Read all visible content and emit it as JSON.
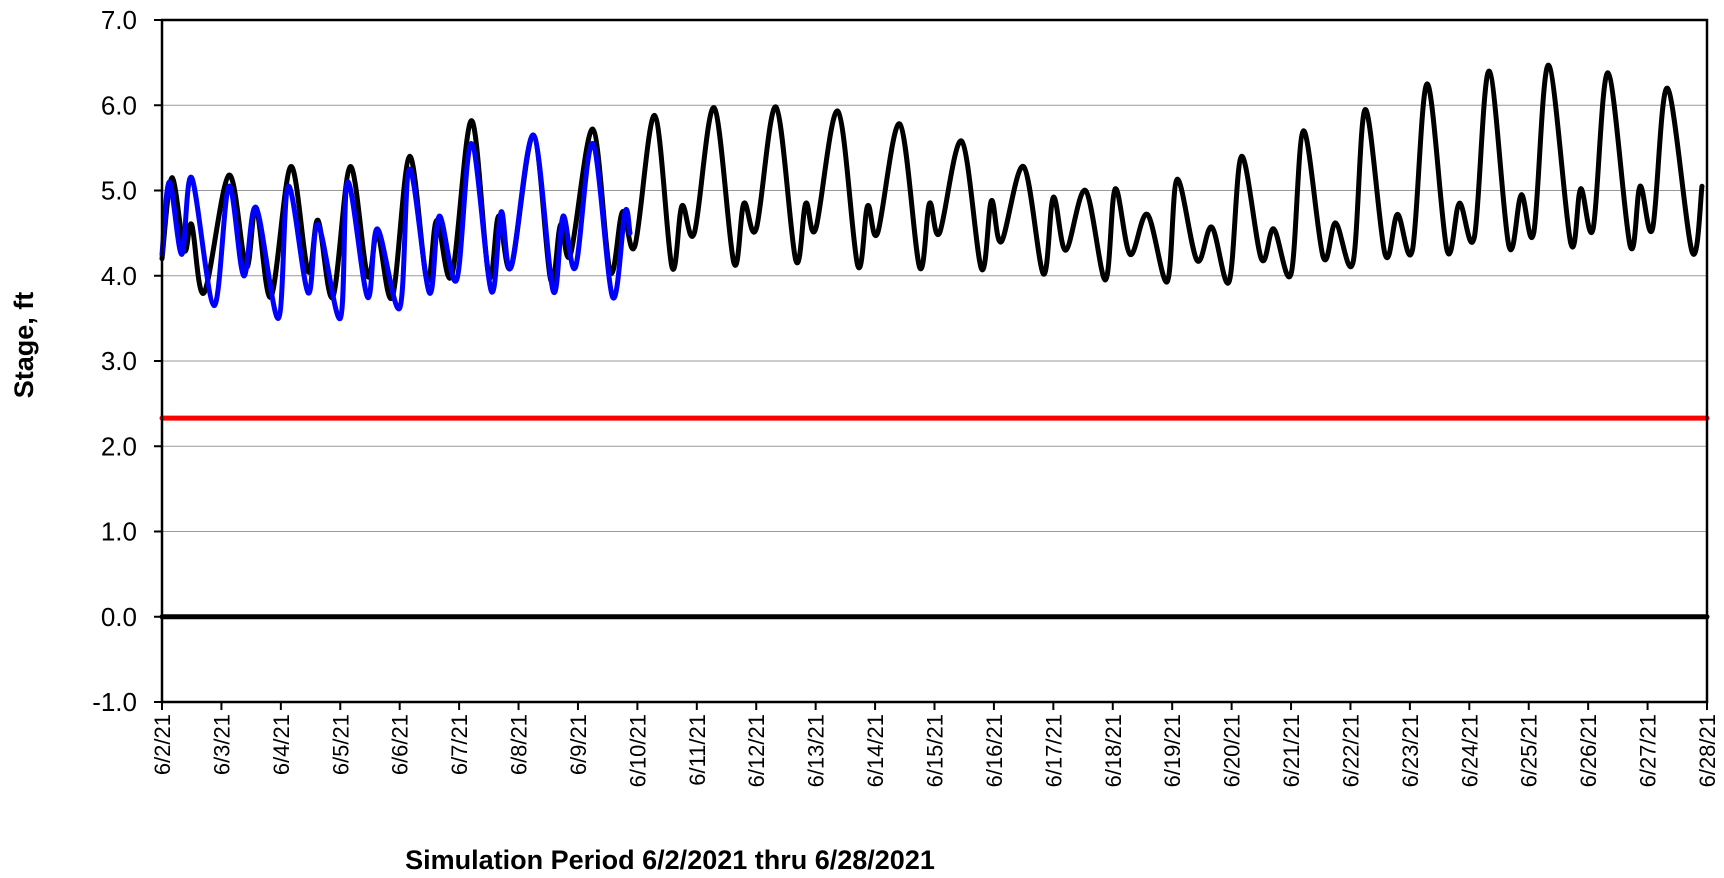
{
  "chart_data": {
    "type": "line",
    "title": "",
    "xlabel": "Simulation Period 6/2/2021 thru 6/28/2021",
    "ylabel": "Stage, ft",
    "ylim": [
      -1.0,
      7.0
    ],
    "y_ticks": [
      "-1.0",
      "0.0",
      "1.0",
      "2.0",
      "3.0",
      "4.0",
      "5.0",
      "6.0",
      "7.0"
    ],
    "x_start": "2021-06-02",
    "x_end": "2021-06-28",
    "x_tick_labels": [
      "6/2/21",
      "6/3/21",
      "6/4/21",
      "6/5/21",
      "6/6/21",
      "6/7/21",
      "6/8/21",
      "6/9/21",
      "6/10/21",
      "6/11/21",
      "6/12/21",
      "6/13/21",
      "6/14/21",
      "6/15/21",
      "6/16/21",
      "6/17/21",
      "6/18/21",
      "6/19/21",
      "6/20/21",
      "6/21/21",
      "6/22/21",
      "6/23/21",
      "6/24/21",
      "6/25/21",
      "6/26/21",
      "6/27/21",
      "6/28/21"
    ],
    "grid": "horizontal",
    "legend": "none",
    "series": [
      {
        "color": "#000000",
        "points": [
          [
            "2021-06-02 00:00",
            4.2
          ],
          [
            "2021-06-02 04:00",
            5.15
          ],
          [
            "2021-06-02 09:00",
            4.3
          ],
          [
            "2021-06-02 12:00",
            4.6
          ],
          [
            "2021-06-02 17:00",
            3.8
          ],
          [
            "2021-06-03 03:00",
            5.18
          ],
          [
            "2021-06-03 10:00",
            4.1
          ],
          [
            "2021-06-03 14:00",
            4.8
          ],
          [
            "2021-06-03 20:00",
            3.75
          ],
          [
            "2021-06-04 04:00",
            5.28
          ],
          [
            "2021-06-04 11:00",
            4.05
          ],
          [
            "2021-06-04 15:00",
            4.65
          ],
          [
            "2021-06-04 21:00",
            3.75
          ],
          [
            "2021-06-05 04:00",
            5.28
          ],
          [
            "2021-06-05 11:00",
            4.0
          ],
          [
            "2021-06-05 15:00",
            4.5
          ],
          [
            "2021-06-05 21:00",
            3.75
          ],
          [
            "2021-06-06 04:00",
            5.4
          ],
          [
            "2021-06-06 11:00",
            3.95
          ],
          [
            "2021-06-06 15:00",
            4.65
          ],
          [
            "2021-06-06 21:00",
            4.0
          ],
          [
            "2021-06-07 05:00",
            5.82
          ],
          [
            "2021-06-07 12:00",
            4.0
          ],
          [
            "2021-06-07 16:00",
            4.7
          ],
          [
            "2021-06-07 21:00",
            4.1
          ],
          [
            "2021-06-08 06:00",
            5.65
          ],
          [
            "2021-06-08 13:00",
            3.95
          ],
          [
            "2021-06-08 17:00",
            4.6
          ],
          [
            "2021-06-08 21:00",
            4.25
          ],
          [
            "2021-06-09 06:00",
            5.72
          ],
          [
            "2021-06-09 13:00",
            4.05
          ],
          [
            "2021-06-09 18:00",
            4.75
          ],
          [
            "2021-06-09 23:00",
            4.35
          ],
          [
            "2021-06-10 07:00",
            5.88
          ],
          [
            "2021-06-10 14:00",
            4.1
          ],
          [
            "2021-06-10 18:00",
            4.82
          ],
          [
            "2021-06-10 23:00",
            4.5
          ],
          [
            "2021-06-11 07:00",
            5.97
          ],
          [
            "2021-06-11 15:00",
            4.15
          ],
          [
            "2021-06-11 19:00",
            4.85
          ],
          [
            "2021-06-12 00:00",
            4.55
          ],
          [
            "2021-06-12 08:00",
            5.98
          ],
          [
            "2021-06-12 16:00",
            4.18
          ],
          [
            "2021-06-12 20:00",
            4.85
          ],
          [
            "2021-06-13 00:00",
            4.55
          ],
          [
            "2021-06-13 09:00",
            5.93
          ],
          [
            "2021-06-13 17:00",
            4.12
          ],
          [
            "2021-06-13 21:00",
            4.82
          ],
          [
            "2021-06-14 01:00",
            4.5
          ],
          [
            "2021-06-14 10:00",
            5.78
          ],
          [
            "2021-06-14 18:00",
            4.1
          ],
          [
            "2021-06-14 22:00",
            4.85
          ],
          [
            "2021-06-15 02:00",
            4.5
          ],
          [
            "2021-06-15 11:00",
            5.58
          ],
          [
            "2021-06-15 19:00",
            4.08
          ],
          [
            "2021-06-15 23:00",
            4.88
          ],
          [
            "2021-06-16 03:00",
            4.4
          ],
          [
            "2021-06-16 12:00",
            5.28
          ],
          [
            "2021-06-16 20:00",
            4.02
          ],
          [
            "2021-06-17 00:00",
            4.92
          ],
          [
            "2021-06-17 05:00",
            4.3
          ],
          [
            "2021-06-17 13:00",
            5.0
          ],
          [
            "2021-06-17 21:00",
            3.95
          ],
          [
            "2021-06-18 01:00",
            5.02
          ],
          [
            "2021-06-18 07:00",
            4.25
          ],
          [
            "2021-06-18 14:00",
            4.72
          ],
          [
            "2021-06-18 22:00",
            3.93
          ],
          [
            "2021-06-19 02:00",
            5.13
          ],
          [
            "2021-06-19 10:00",
            4.18
          ],
          [
            "2021-06-19 16:00",
            4.57
          ],
          [
            "2021-06-19 23:00",
            3.93
          ],
          [
            "2021-06-20 04:00",
            5.4
          ],
          [
            "2021-06-20 12:00",
            4.2
          ],
          [
            "2021-06-20 17:00",
            4.55
          ],
          [
            "2021-06-21 00:00",
            4.02
          ],
          [
            "2021-06-21 05:00",
            5.7
          ],
          [
            "2021-06-21 13:00",
            4.22
          ],
          [
            "2021-06-21 18:00",
            4.62
          ],
          [
            "2021-06-22 01:00",
            4.15
          ],
          [
            "2021-06-22 06:00",
            5.95
          ],
          [
            "2021-06-22 14:00",
            4.25
          ],
          [
            "2021-06-22 19:00",
            4.72
          ],
          [
            "2021-06-23 01:00",
            4.3
          ],
          [
            "2021-06-23 07:00",
            6.25
          ],
          [
            "2021-06-23 15:00",
            4.3
          ],
          [
            "2021-06-23 20:00",
            4.85
          ],
          [
            "2021-06-24 02:00",
            4.45
          ],
          [
            "2021-06-24 08:00",
            6.4
          ],
          [
            "2021-06-24 16:00",
            4.35
          ],
          [
            "2021-06-24 21:00",
            4.95
          ],
          [
            "2021-06-25 02:00",
            4.5
          ],
          [
            "2021-06-25 08:00",
            6.47
          ],
          [
            "2021-06-25 17:00",
            4.38
          ],
          [
            "2021-06-25 21:00",
            5.02
          ],
          [
            "2021-06-26 02:00",
            4.55
          ],
          [
            "2021-06-26 08:00",
            6.38
          ],
          [
            "2021-06-26 17:00",
            4.35
          ],
          [
            "2021-06-26 21:00",
            5.05
          ],
          [
            "2021-06-27 02:00",
            4.55
          ],
          [
            "2021-06-27 08:00",
            6.2
          ],
          [
            "2021-06-27 18:00",
            4.28
          ],
          [
            "2021-06-27 22:00",
            5.05
          ]
        ]
      },
      {
        "color": "#0000ff",
        "points": [
          [
            "2021-06-02 00:00",
            4.25
          ],
          [
            "2021-06-02 03:00",
            5.1
          ],
          [
            "2021-06-02 08:00",
            4.25
          ],
          [
            "2021-06-02 12:00",
            5.15
          ],
          [
            "2021-06-02 21:00",
            3.65
          ],
          [
            "2021-06-03 03:00",
            5.05
          ],
          [
            "2021-06-03 09:00",
            4.0
          ],
          [
            "2021-06-03 14:00",
            4.8
          ],
          [
            "2021-06-03 23:00",
            3.5
          ],
          [
            "2021-06-04 03:00",
            5.05
          ],
          [
            "2021-06-04 11:00",
            3.8
          ],
          [
            "2021-06-04 15:00",
            4.6
          ],
          [
            "2021-06-05 00:00",
            3.5
          ],
          [
            "2021-06-05 03:00",
            5.1
          ],
          [
            "2021-06-05 11:00",
            3.75
          ],
          [
            "2021-06-05 15:00",
            4.55
          ],
          [
            "2021-06-06 00:00",
            3.62
          ],
          [
            "2021-06-06 04:00",
            5.25
          ],
          [
            "2021-06-06 12:00",
            3.8
          ],
          [
            "2021-06-06 16:00",
            4.7
          ],
          [
            "2021-06-06 23:00",
            3.95
          ],
          [
            "2021-06-07 05:00",
            5.55
          ],
          [
            "2021-06-07 13:00",
            3.82
          ],
          [
            "2021-06-07 17:00",
            4.75
          ],
          [
            "2021-06-07 21:00",
            4.1
          ],
          [
            "2021-06-08 06:00",
            5.65
          ],
          [
            "2021-06-08 14:00",
            3.82
          ],
          [
            "2021-06-08 18:00",
            4.7
          ],
          [
            "2021-06-08 23:00",
            4.1
          ],
          [
            "2021-06-09 06:00",
            5.55
          ],
          [
            "2021-06-09 14:00",
            3.75
          ],
          [
            "2021-06-09 19:00",
            4.75
          ],
          [
            "2021-06-09 21:00",
            4.5
          ]
        ]
      },
      {
        "color": "#ff0000",
        "points": [
          [
            "2021-06-02 00:00",
            2.33
          ],
          [
            "2021-06-28 00:00",
            2.33
          ]
        ]
      },
      {
        "color": "#000000",
        "points": [
          [
            "2021-06-02 00:00",
            0.0
          ],
          [
            "2021-06-28 00:00",
            0.0
          ]
        ]
      }
    ]
  }
}
